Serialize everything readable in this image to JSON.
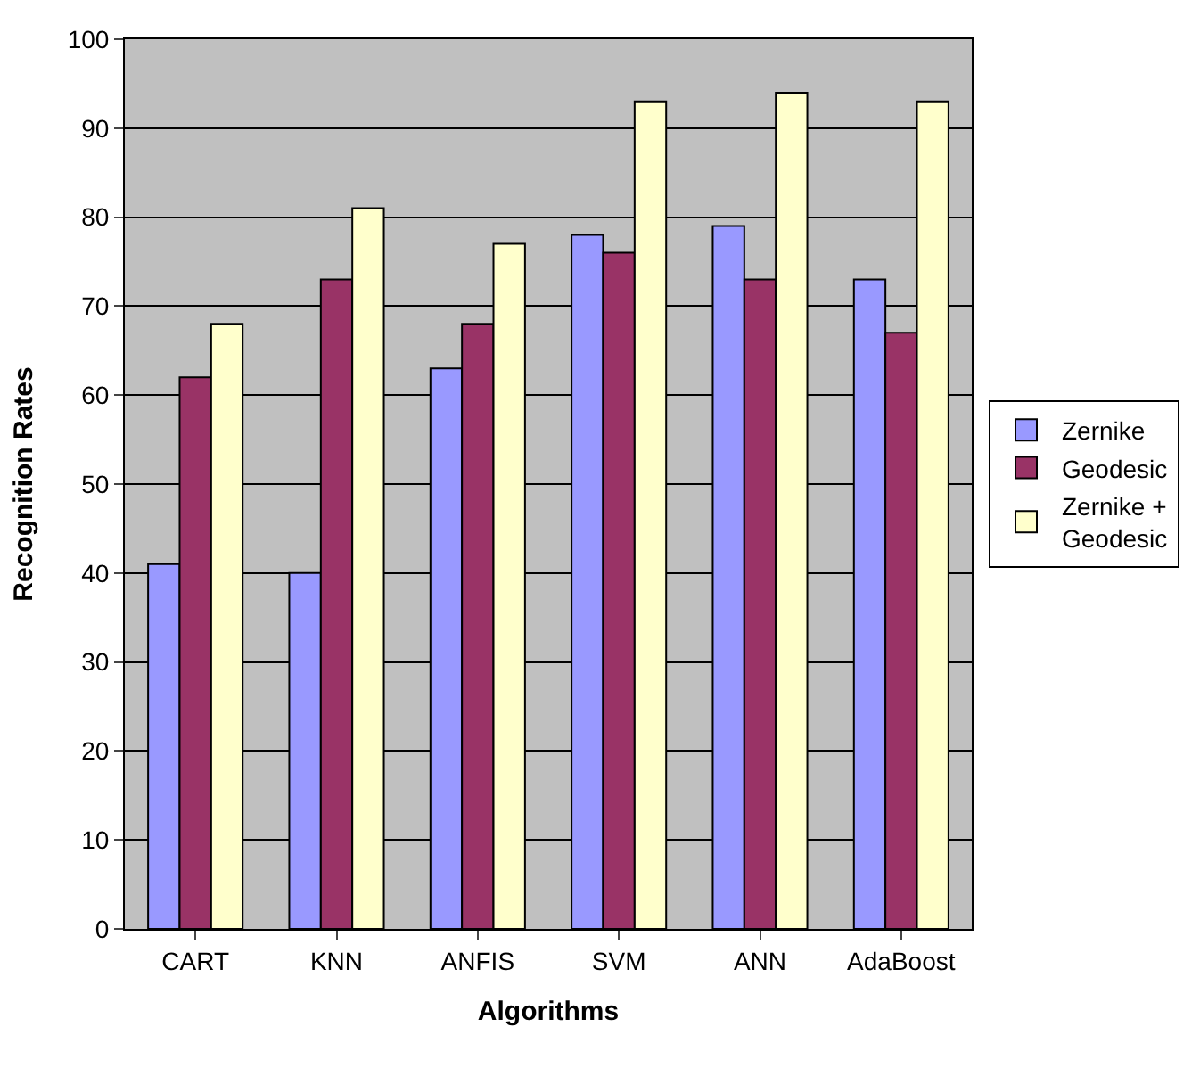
{
  "chart_data": {
    "type": "bar",
    "xlabel": "Algorithms",
    "ylabel": "Recognition Rates",
    "categories": [
      "CART",
      "KNN",
      "ANFIS",
      "SVM",
      "ANN",
      "AdaBoost"
    ],
    "series": [
      {
        "name": "Zernike",
        "color": "#9999ff",
        "values": [
          41,
          40,
          63,
          78,
          79,
          73
        ]
      },
      {
        "name": "Geodesic",
        "color": "#993366",
        "values": [
          62,
          73,
          68,
          76,
          73,
          67
        ]
      },
      {
        "name": "Zernike + Geodesic",
        "color": "#ffffcc",
        "values": [
          68,
          81,
          77,
          93,
          94,
          93
        ]
      }
    ],
    "ylim": [
      0,
      100
    ],
    "yticks": [
      0,
      10,
      20,
      30,
      40,
      50,
      60,
      70,
      80,
      90,
      100
    ],
    "grid": "y",
    "legend": "right"
  }
}
